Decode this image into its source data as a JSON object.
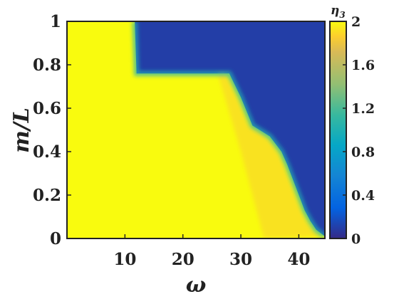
{
  "chart_data": {
    "type": "heatmap",
    "title": "",
    "xlabel": "ω",
    "ylabel": "m/L",
    "xlim": [
      0,
      44.5
    ],
    "ylim": [
      0,
      1
    ],
    "x_ticks": [
      10,
      20,
      30,
      40
    ],
    "y_ticks": [
      0,
      0.2,
      0.4,
      0.6,
      0.8,
      1
    ],
    "x_tick_labels": [
      "10",
      "20",
      "30",
      "40"
    ],
    "y_tick_labels": [
      "0",
      "0.2",
      "0.4",
      "0.6",
      "0.8",
      "1"
    ],
    "colorbar": {
      "label": "η3",
      "label_base": "η",
      "label_sub": "3",
      "min": 0,
      "max": 2,
      "ticks": [
        0,
        0.4,
        0.8,
        1.2,
        1.6,
        2
      ],
      "tick_labels": [
        "0",
        "0.4",
        "0.8",
        "1.2",
        "1.6",
        "2"
      ],
      "colormap": "parula"
    },
    "colormap_stops": [
      {
        "t": 0.0,
        "color": "#352a87"
      },
      {
        "t": 0.14,
        "color": "#0363e1"
      },
      {
        "t": 0.29,
        "color": "#1485d4"
      },
      {
        "t": 0.43,
        "color": "#06a7c6"
      },
      {
        "t": 0.57,
        "color": "#38b99e"
      },
      {
        "t": 0.71,
        "color": "#92bf73"
      },
      {
        "t": 0.86,
        "color": "#d9ba56"
      },
      {
        "t": 0.93,
        "color": "#fcce2e"
      },
      {
        "t": 1.0,
        "color": "#f9fb0e"
      }
    ],
    "boundary": {
      "omega": [
        0,
        5,
        10,
        11.7,
        12,
        15,
        20,
        25,
        28,
        30,
        32,
        35,
        37,
        38,
        39,
        40,
        41,
        42,
        43,
        44,
        44.5
      ],
      "m_over_L": [
        1.0,
        1.0,
        1.0,
        1.0,
        0.76,
        0.76,
        0.76,
        0.76,
        0.76,
        0.65,
        0.52,
        0.47,
        0.4,
        0.34,
        0.27,
        0.2,
        0.13,
        0.08,
        0.04,
        0.02,
        0.01
      ]
    },
    "regions": [
      {
        "description_value": "η3 ≈ 2 (yellow) below the boundary",
        "eta3": 2.0
      },
      {
        "description_value": "η3 ≈ 0 (dark blue) above the boundary",
        "eta3": 0.1
      }
    ]
  }
}
